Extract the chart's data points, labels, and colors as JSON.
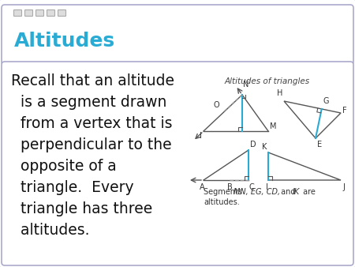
{
  "title": "Altitudes",
  "title_color": "#29ABD4",
  "bg_color": "#FFFFFF",
  "slide_dot_color": "#CCCCCC",
  "outer_box_edge": "#AAAACC",
  "header_edge": "#AAAACC",
  "header_bg": "#FFFFFF",
  "body_bg": "#FFFFFF",
  "diagram_title": "Altitudes of triangles",
  "caption_plain": "Segments ",
  "caption_italic": "MN, EG, CD,",
  "caption_and": " and ",
  "caption_italic2": "IK",
  "caption_end": " are",
  "caption_line2": "altitudes.",
  "triangle_color": "#555555",
  "altitude_color": "#29ABD4",
  "dashed_color": "#999999",
  "label_color": "#333333",
  "text_lines": [
    "Recall that an altitude",
    "  is a segment drawn",
    "  from a vertex that is",
    "  perpendicular to the",
    "  opposite of a",
    "  triangle.  Every",
    "  triangle has three",
    "  altitudes."
  ],
  "text_fontsize": 13.5,
  "title_fontsize": 18
}
